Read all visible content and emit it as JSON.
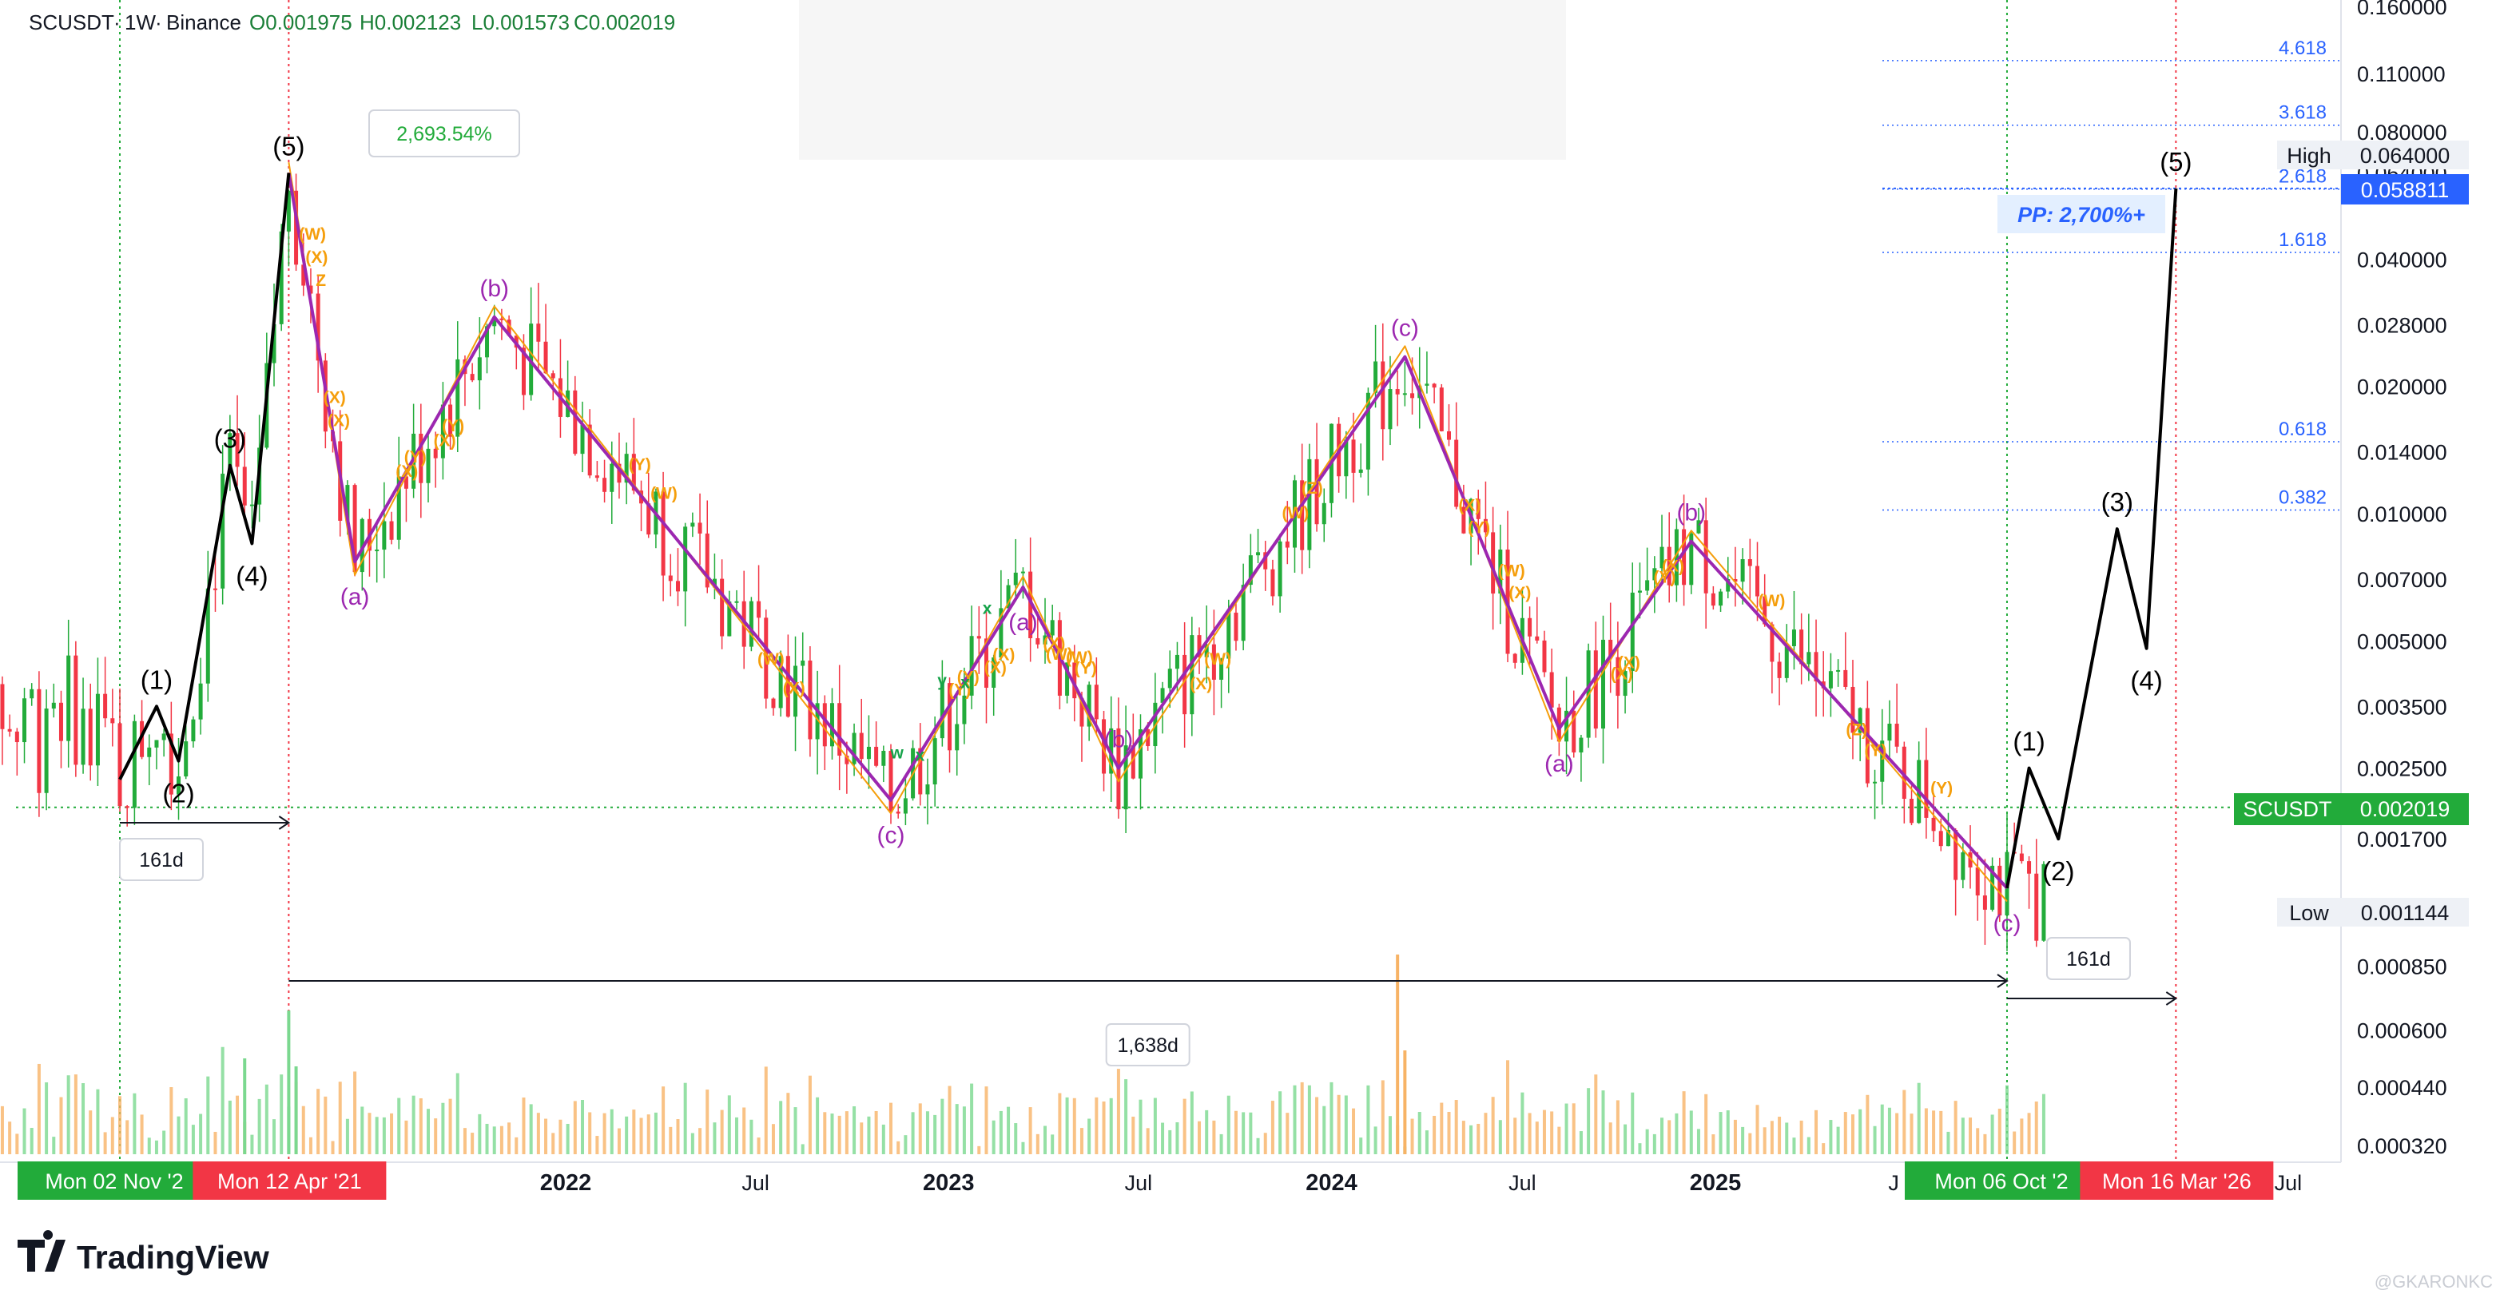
{
  "header": {
    "symbol": "SCUSDT",
    "interval": "1W",
    "exchange": "Binance",
    "open": "O0.001975",
    "high": "H0.002123",
    "low": "L0.001573",
    "close": "C0.002019"
  },
  "price_axis_labels": [
    "0.160000",
    "0.110000",
    "0.080000",
    "0.064000",
    "0.040000",
    "0.028000",
    "0.020000",
    "0.014000",
    "0.010000",
    "0.007000",
    "0.005000",
    "0.003500",
    "0.002500",
    "0.001700",
    "0.000850",
    "0.000600",
    "0.000440",
    "0.000320"
  ],
  "time_axis": {
    "labels": [
      "2022",
      "Jul",
      "2023",
      "Jul",
      "2024",
      "Jul",
      "2025",
      "J",
      "Jul"
    ],
    "bold_labels": [
      "2022",
      "2023",
      "2024",
      "2025"
    ],
    "date_boxes": [
      {
        "label": "Mon 02 Nov '2",
        "color": "#22ab3a"
      },
      {
        "label": "Mon 12 Apr '21",
        "color": "#f23645"
      },
      {
        "label": "Mon 06 Oct '2",
        "color": "#22ab3a"
      },
      {
        "label": "Mon 16 Mar '26",
        "color": "#f23645"
      }
    ]
  },
  "price_tags": {
    "high_label": "High",
    "high_value": "0.064000",
    "target_value": "0.058811",
    "symbol_tag": "SCUSDT",
    "last_value": "0.002019",
    "low_label": "Low",
    "low_value": "0.001144"
  },
  "fib_levels": [
    {
      "label": "4.618",
      "value": 0.118
    },
    {
      "label": "3.618",
      "value": 0.083
    },
    {
      "label": "2.618",
      "value": 0.0586
    },
    {
      "label": "1.618",
      "value": 0.0415
    },
    {
      "label": "0.618",
      "value": 0.0148
    },
    {
      "label": "0.382",
      "value": 0.0102
    }
  ],
  "annotations": {
    "gain_box": "2,693.54%",
    "pp_label": "PP: 2,700%+",
    "duration_1": "161d",
    "duration_2": "1,638d",
    "duration_3": "161d"
  },
  "wave_labels": {
    "black": [
      "(1)",
      "(2)",
      "(3)",
      "(4)",
      "(5)",
      "(1)",
      "(2)",
      "(3)",
      "(4)",
      "(5)"
    ],
    "purple": [
      "(a)",
      "(b)",
      "(c)",
      "(a)",
      "(b)",
      "(c)",
      "(a)",
      "(b)",
      "(c)"
    ],
    "orange": [
      "(W)",
      "(X)",
      "(Y)",
      "(X)",
      "(W)",
      "(X)",
      "(W)",
      "(X)",
      "(Y)",
      "(X)",
      "(X)",
      "(W)",
      "(Y)",
      "(X)",
      "(W)",
      "(X)",
      "(Y)",
      "(Z)",
      "(X)",
      "(Y)",
      "(W)",
      "(X)",
      "(Y)",
      "(W)",
      "(X)",
      "(X)",
      "(W)",
      "(X)",
      "(Y)",
      "(X)",
      "(Y)",
      "(W)",
      "(Z)",
      "(Y)",
      "(X)",
      "(Y)",
      "Z"
    ],
    "green": [
      "w",
      "x",
      "y",
      "x",
      "x"
    ]
  },
  "brand": {
    "name": "TradingView",
    "attribution": "@GKARONKC"
  },
  "chart_data": {
    "type": "candlestick",
    "symbol": "SCUSDT",
    "timeframe": "1W",
    "y_scale": "log",
    "ylim": [
      0.0003,
      0.17
    ],
    "last_price": 0.002019,
    "high": 0.064,
    "low": 0.001144,
    "wave_path_main": [
      {
        "date": "2020-11-02",
        "price": 0.00235,
        "label": "start"
      },
      {
        "date": "2020-12-07",
        "price": 0.0035,
        "label": "(1)"
      },
      {
        "date": "2020-12-28",
        "price": 0.0026,
        "label": "(2)"
      },
      {
        "date": "2021-02-15",
        "price": 0.013,
        "label": "(3)"
      },
      {
        "date": "2021-03-08",
        "price": 0.0085,
        "label": "(4)"
      },
      {
        "date": "2021-04-12",
        "price": 0.064,
        "label": "(5)"
      },
      {
        "date": "2021-06-14",
        "price": 0.0077,
        "label": "(a)"
      },
      {
        "date": "2021-10-25",
        "price": 0.0292,
        "label": "(b)"
      },
      {
        "date": "2022-11-07",
        "price": 0.0021,
        "label": "(c)"
      },
      {
        "date": "2023-03-13",
        "price": 0.0067,
        "label": "(a)"
      },
      {
        "date": "2023-06-12",
        "price": 0.0025,
        "label": "(b)"
      },
      {
        "date": "2024-03-11",
        "price": 0.0235,
        "label": "(c)"
      },
      {
        "date": "2024-08-05",
        "price": 0.0031,
        "label": "(a)"
      },
      {
        "date": "2024-12-09",
        "price": 0.0086,
        "label": "(b)"
      },
      {
        "date": "2025-10-06",
        "price": 0.0013,
        "label": "(c)"
      }
    ],
    "projection_path": [
      {
        "date": "2025-10-06",
        "price": 0.0013
      },
      {
        "date": "2025-10-27",
        "price": 0.0025,
        "label": "(1)"
      },
      {
        "date": "2025-11-24",
        "price": 0.0017,
        "label": "(2)"
      },
      {
        "date": "2026-01-19",
        "price": 0.0092,
        "label": "(3)"
      },
      {
        "date": "2026-02-16",
        "price": 0.0048,
        "label": "(4)"
      },
      {
        "date": "2026-03-16",
        "price": 0.0588,
        "label": "(5)"
      }
    ],
    "measures": [
      {
        "from": "2020-11-02",
        "to": "2021-04-12",
        "label": "161d"
      },
      {
        "from": "2021-04-12",
        "to": "2025-10-06",
        "label": "1,638d"
      },
      {
        "from": "2025-10-06",
        "to": "2026-03-16",
        "label": "161d"
      }
    ],
    "gain_percent_label": "2,693.54%",
    "target_label": "PP: 2,700%+"
  }
}
